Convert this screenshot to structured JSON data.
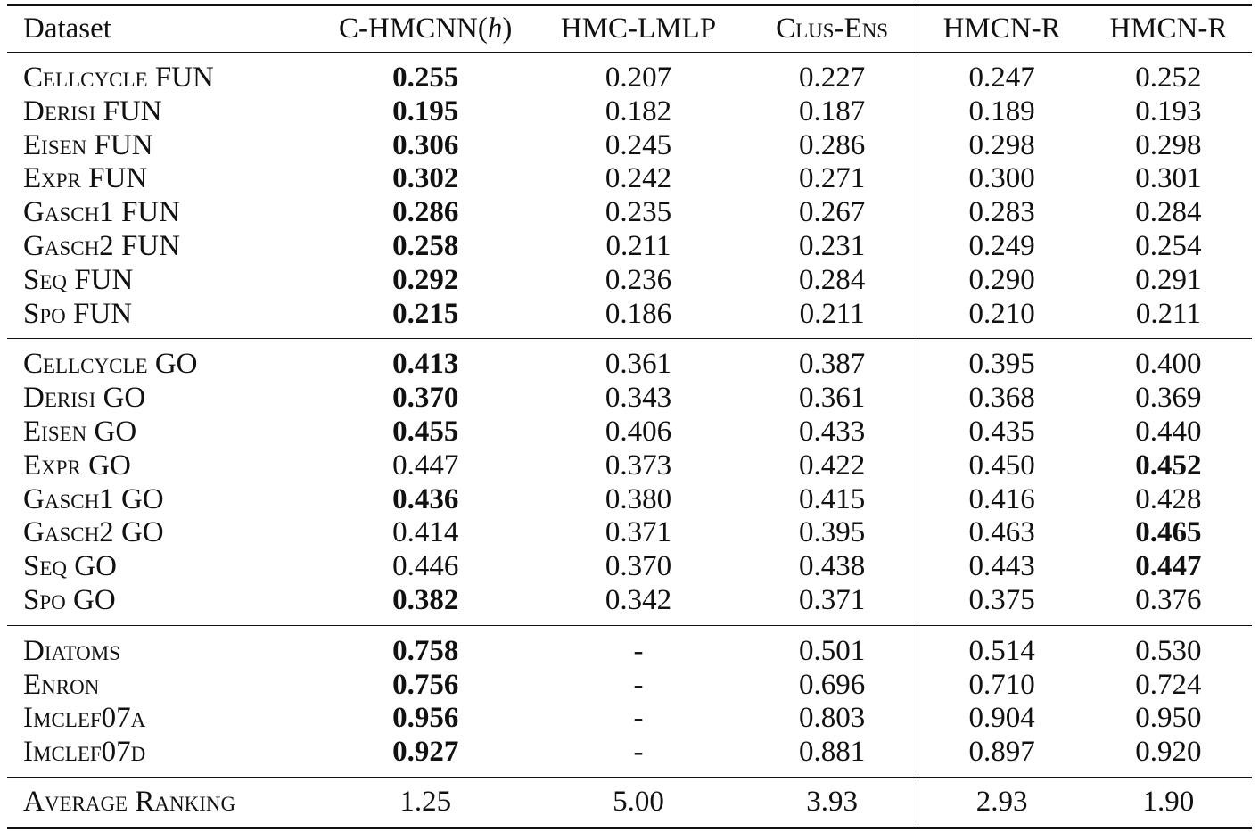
{
  "columns": {
    "dataset": "Dataset",
    "m1_prefix": "C-HMCNN(",
    "m1_var": "h",
    "m1_suffix": ")",
    "m2": "HMC-LMLP",
    "m3": "Clus-Ens",
    "m4": "HMCN-R",
    "m5": "HMCN-R"
  },
  "groups": [
    {
      "rows": [
        {
          "name": "Cellcycle",
          "suffix": " FUN",
          "v": [
            "0.255",
            "0.207",
            "0.227",
            "0.247",
            "0.252"
          ],
          "best": 0
        },
        {
          "name": "Derisi",
          "suffix": " FUN",
          "v": [
            "0.195",
            "0.182",
            "0.187",
            "0.189",
            "0.193"
          ],
          "best": 0
        },
        {
          "name": "Eisen",
          "suffix": " FUN",
          "v": [
            "0.306",
            "0.245",
            "0.286",
            "0.298",
            "0.298"
          ],
          "best": 0
        },
        {
          "name": "Expr",
          "suffix": " FUN",
          "v": [
            "0.302",
            "0.242",
            "0.271",
            "0.300",
            "0.301"
          ],
          "best": 0
        },
        {
          "name": "Gasch1",
          "suffix": " FUN",
          "v": [
            "0.286",
            "0.235",
            "0.267",
            "0.283",
            "0.284"
          ],
          "best": 0
        },
        {
          "name": "Gasch2",
          "suffix": " FUN",
          "v": [
            "0.258",
            "0.211",
            "0.231",
            "0.249",
            "0.254"
          ],
          "best": 0
        },
        {
          "name": "Seq",
          "suffix": " FUN",
          "v": [
            "0.292",
            "0.236",
            "0.284",
            "0.290",
            "0.291"
          ],
          "best": 0
        },
        {
          "name": "Spo",
          "suffix": " FUN",
          "v": [
            "0.215",
            "0.186",
            "0.211",
            "0.210",
            "0.211"
          ],
          "best": 0
        }
      ]
    },
    {
      "rows": [
        {
          "name": "Cellcycle",
          "suffix": " GO",
          "v": [
            "0.413",
            "0.361",
            "0.387",
            "0.395",
            "0.400"
          ],
          "best": 0
        },
        {
          "name": "Derisi",
          "suffix": " GO",
          "v": [
            "0.370",
            "0.343",
            "0.361",
            "0.368",
            "0.369"
          ],
          "best": 0
        },
        {
          "name": "Eisen",
          "suffix": " GO",
          "v": [
            "0.455",
            "0.406",
            "0.433",
            "0.435",
            "0.440"
          ],
          "best": 0
        },
        {
          "name": "Expr",
          "suffix": " GO",
          "v": [
            "0.447",
            "0.373",
            "0.422",
            "0.450",
            "0.452"
          ],
          "best": 4
        },
        {
          "name": "Gasch1",
          "suffix": " GO",
          "v": [
            "0.436",
            "0.380",
            "0.415",
            "0.416",
            "0.428"
          ],
          "best": 0
        },
        {
          "name": "Gasch2",
          "suffix": " GO",
          "v": [
            "0.414",
            "0.371",
            "0.395",
            "0.463",
            "0.465"
          ],
          "best": 4
        },
        {
          "name": "Seq",
          "suffix": " GO",
          "v": [
            "0.446",
            "0.370",
            "0.438",
            "0.443",
            "0.447"
          ],
          "best": 4
        },
        {
          "name": "Spo",
          "suffix": " GO",
          "v": [
            "0.382",
            "0.342",
            "0.371",
            "0.375",
            "0.376"
          ],
          "best": 0
        }
      ]
    },
    {
      "rows": [
        {
          "name": "Diatoms",
          "suffix": "",
          "v": [
            "0.758",
            "-",
            "0.501",
            "0.514",
            "0.530"
          ],
          "best": 0
        },
        {
          "name": "Enron",
          "suffix": "",
          "v": [
            "0.756",
            "-",
            "0.696",
            "0.710",
            "0.724"
          ],
          "best": 0
        },
        {
          "name": "Imclef07a",
          "suffix": "",
          "v": [
            "0.956",
            "-",
            "0.803",
            "0.904",
            "0.950"
          ],
          "best": 0
        },
        {
          "name": "Imclef07d",
          "suffix": "",
          "v": [
            "0.927",
            "-",
            "0.881",
            "0.897",
            "0.920"
          ],
          "best": 0
        }
      ]
    }
  ],
  "ranking": {
    "name": "Average Ranking",
    "v": [
      "1.25",
      "5.00",
      "3.93",
      "2.93",
      "1.90"
    ]
  }
}
